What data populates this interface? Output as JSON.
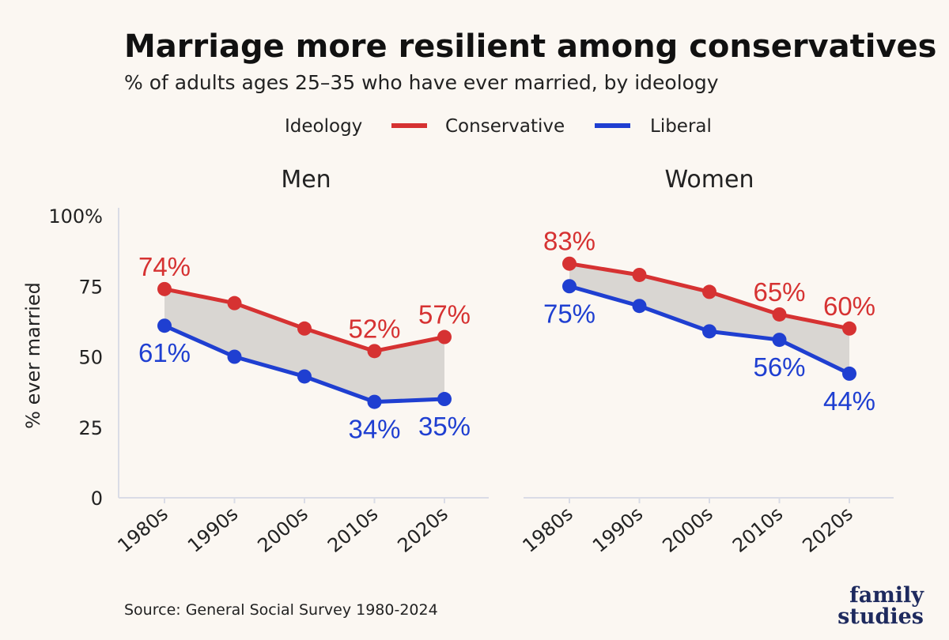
{
  "header": {
    "title": "Marriage more resilient among conservatives",
    "subtitle": "% of adults ages 25–35 who have ever married, by ideology"
  },
  "legend": {
    "title": "Ideology",
    "items": [
      {
        "label": "Conservative",
        "color": "#d63232"
      },
      {
        "label": "Liberal",
        "color": "#1f3fd1"
      }
    ]
  },
  "chart_data": {
    "type": "line",
    "ylabel": "% ever married",
    "ylim": [
      0,
      100
    ],
    "yticks": [
      "0",
      "25",
      "50",
      "75",
      "100%"
    ],
    "ytick_values": [
      0,
      25,
      50,
      75,
      100
    ],
    "categories": [
      "1980s",
      "1990s",
      "2000s",
      "2010s",
      "2020s"
    ],
    "band_color": "#d9d6d2",
    "panels": [
      {
        "title": "Men",
        "series": [
          {
            "name": "Conservative",
            "color": "#d63232",
            "values": [
              74,
              69,
              60,
              52,
              57
            ]
          },
          {
            "name": "Liberal",
            "color": "#1f3fd1",
            "values": [
              61,
              50,
              43,
              34,
              35
            ]
          }
        ],
        "labels": [
          {
            "series": 0,
            "index": 0,
            "text": "74%",
            "pos": "above"
          },
          {
            "series": 0,
            "index": 3,
            "text": "52%",
            "pos": "above"
          },
          {
            "series": 0,
            "index": 4,
            "text": "57%",
            "pos": "above"
          },
          {
            "series": 1,
            "index": 0,
            "text": "61%",
            "pos": "below"
          },
          {
            "series": 1,
            "index": 3,
            "text": "34%",
            "pos": "below"
          },
          {
            "series": 1,
            "index": 4,
            "text": "35%",
            "pos": "below"
          }
        ]
      },
      {
        "title": "Women",
        "series": [
          {
            "name": "Conservative",
            "color": "#d63232",
            "values": [
              83,
              79,
              73,
              65,
              60
            ]
          },
          {
            "name": "Liberal",
            "color": "#1f3fd1",
            "values": [
              75,
              68,
              59,
              56,
              44
            ]
          }
        ],
        "labels": [
          {
            "series": 0,
            "index": 0,
            "text": "83%",
            "pos": "above"
          },
          {
            "series": 0,
            "index": 3,
            "text": "65%",
            "pos": "above"
          },
          {
            "series": 0,
            "index": 4,
            "text": "60%",
            "pos": "above"
          },
          {
            "series": 1,
            "index": 0,
            "text": "75%",
            "pos": "below"
          },
          {
            "series": 1,
            "index": 3,
            "text": "56%",
            "pos": "below"
          },
          {
            "series": 1,
            "index": 4,
            "text": "44%",
            "pos": "below"
          }
        ]
      }
    ]
  },
  "footer": {
    "source": "Source: General Social Survey 1980-2024",
    "logo_line1": "family",
    "logo_line2": "studies"
  }
}
